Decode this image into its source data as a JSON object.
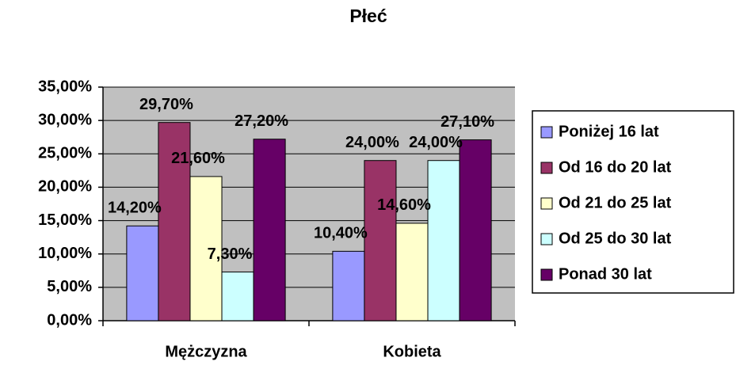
{
  "chart_data": {
    "type": "bar",
    "title": "Płeć",
    "categories": [
      "Mężczyzna",
      "Kobieta"
    ],
    "series": [
      {
        "name": "Poniżej 16 lat",
        "color": "#9999ff",
        "values": [
          14.2,
          10.4
        ],
        "value_labels": [
          "14,20%",
          "10,40%"
        ]
      },
      {
        "name": "Od 16 do 20 lat",
        "color": "#993366",
        "values": [
          29.7,
          24.0
        ],
        "value_labels": [
          "29,70%",
          "24,00%"
        ]
      },
      {
        "name": "Od 21 do 25 lat",
        "color": "#ffffcc",
        "values": [
          21.6,
          14.6
        ],
        "value_labels": [
          "21,60%",
          "14,60%"
        ]
      },
      {
        "name": "Od 25 do 30 lat",
        "color": "#ccffff",
        "values": [
          7.3,
          24.0
        ],
        "value_labels": [
          "7,30%",
          "24,00%"
        ]
      },
      {
        "name": "Ponad 30 lat",
        "color": "#660066",
        "values": [
          27.2,
          27.1
        ],
        "value_labels": [
          "27,20%",
          "27,10%"
        ]
      }
    ],
    "ylim": [
      0,
      35
    ],
    "yticks": [
      {
        "value": 0,
        "label": "0,00%"
      },
      {
        "value": 5,
        "label": "5,00%"
      },
      {
        "value": 10,
        "label": "10,00%"
      },
      {
        "value": 15,
        "label": "15,00%"
      },
      {
        "value": 20,
        "label": "20,00%"
      },
      {
        "value": 25,
        "label": "25,00%"
      },
      {
        "value": 30,
        "label": "30,00%"
      },
      {
        "value": 35,
        "label": "35,00%"
      }
    ],
    "grid": true,
    "legend": "right"
  }
}
